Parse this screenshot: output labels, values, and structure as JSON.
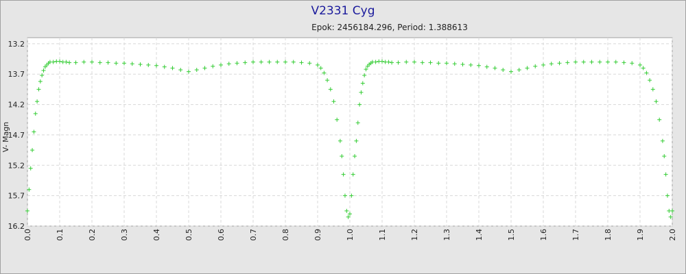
{
  "chart_data": {
    "type": "scatter",
    "title": "V2331 Cyg",
    "subtitle": "Epok: 2456184.296, Period: 1.388613",
    "xlabel": "",
    "ylabel": "V- Magn",
    "xlim": [
      0.0,
      2.0
    ],
    "ylim": [
      13.1,
      16.2
    ],
    "y_inverted": true,
    "x_tick_labels": [
      "0.0",
      "0.1",
      "0.2",
      "0.3",
      "0.4",
      "0.5",
      "0.6",
      "0.7",
      "0.8",
      "0.9",
      "1.0",
      "1.1",
      "1.2",
      "1.3",
      "1.4",
      "1.5",
      "1.6",
      "1.7",
      "1.8",
      "1.9",
      "2.0"
    ],
    "y_tick_labels": [
      "13.2",
      "13.7",
      "14.2",
      "14.7",
      "15.2",
      "15.7",
      "16.2"
    ],
    "grid": true,
    "marker": "+",
    "series_color": "#33cc33",
    "series": [
      {
        "x": [
          0.0,
          0.005,
          0.01,
          0.015,
          0.02,
          0.025,
          0.03,
          0.035,
          0.04,
          0.045,
          0.05,
          0.055,
          0.06,
          0.065,
          0.07,
          0.08,
          0.09,
          0.1,
          0.11,
          0.12,
          0.13,
          0.15,
          0.175,
          0.2,
          0.225,
          0.25,
          0.275,
          0.3,
          0.325,
          0.35,
          0.375,
          0.4,
          0.425,
          0.45,
          0.475,
          0.5,
          0.525,
          0.55,
          0.575,
          0.6,
          0.625,
          0.65,
          0.675,
          0.7,
          0.725,
          0.75,
          0.775,
          0.8,
          0.825,
          0.85,
          0.875,
          0.9,
          0.91,
          0.92,
          0.93,
          0.94,
          0.95,
          0.96,
          0.97,
          0.975,
          0.98,
          0.985,
          0.99,
          0.995,
          1.0,
          1.005,
          1.01,
          1.015,
          1.02,
          1.025,
          1.03,
          1.035,
          1.04,
          1.045,
          1.05,
          1.055,
          1.06,
          1.065,
          1.07,
          1.08,
          1.09,
          1.1,
          1.11,
          1.12,
          1.13,
          1.15,
          1.175,
          1.2,
          1.225,
          1.25,
          1.275,
          1.3,
          1.325,
          1.35,
          1.375,
          1.4,
          1.425,
          1.45,
          1.475,
          1.5,
          1.525,
          1.55,
          1.575,
          1.6,
          1.625,
          1.65,
          1.675,
          1.7,
          1.725,
          1.75,
          1.775,
          1.8,
          1.825,
          1.85,
          1.875,
          1.9,
          1.91,
          1.92,
          1.93,
          1.94,
          1.95,
          1.96,
          1.97,
          1.975,
          1.98,
          1.985,
          1.99,
          1.995,
          2.0
        ],
        "y": [
          15.95,
          15.6,
          15.25,
          14.95,
          14.65,
          14.35,
          14.15,
          13.95,
          13.82,
          13.72,
          13.64,
          13.58,
          13.55,
          13.52,
          13.5,
          13.5,
          13.49,
          13.49,
          13.5,
          13.5,
          13.51,
          13.51,
          13.5,
          13.5,
          13.51,
          13.51,
          13.52,
          13.52,
          13.53,
          13.54,
          13.55,
          13.56,
          13.58,
          13.6,
          13.63,
          13.66,
          13.63,
          13.6,
          13.57,
          13.55,
          13.53,
          13.52,
          13.51,
          13.5,
          13.5,
          13.5,
          13.5,
          13.5,
          13.5,
          13.51,
          13.52,
          13.55,
          13.6,
          13.68,
          13.8,
          13.95,
          14.15,
          14.45,
          14.8,
          15.05,
          15.35,
          15.7,
          15.95,
          16.05,
          16.0,
          15.7,
          15.35,
          15.05,
          14.8,
          14.5,
          14.2,
          14.0,
          13.85,
          13.72,
          13.62,
          13.57,
          13.54,
          13.52,
          13.5,
          13.5,
          13.49,
          13.49,
          13.5,
          13.5,
          13.51,
          13.51,
          13.5,
          13.5,
          13.51,
          13.51,
          13.52,
          13.52,
          13.53,
          13.54,
          13.55,
          13.56,
          13.58,
          13.6,
          13.63,
          13.66,
          13.63,
          13.6,
          13.57,
          13.55,
          13.53,
          13.52,
          13.51,
          13.5,
          13.5,
          13.5,
          13.5,
          13.5,
          13.5,
          13.51,
          13.52,
          13.55,
          13.6,
          13.68,
          13.8,
          13.95,
          14.15,
          14.45,
          14.8,
          15.05,
          15.35,
          15.7,
          15.95,
          16.05,
          15.95
        ]
      }
    ]
  }
}
